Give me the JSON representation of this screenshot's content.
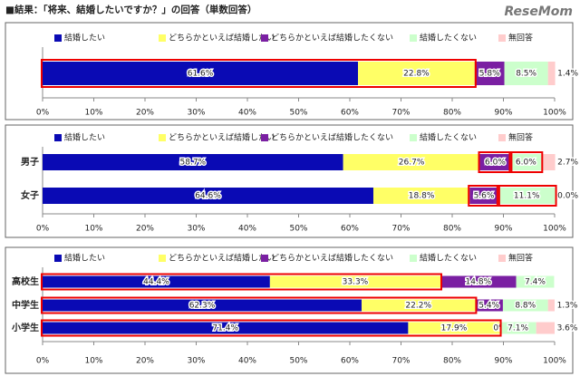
{
  "title": "■結果：「将来、結婚したいですか？」の回答（単数回答）",
  "logo": "ReseMom",
  "chart_data": [
    {
      "type": "bar",
      "orientation": "horizontal",
      "stacked": true,
      "categories": [
        null
      ],
      "series": [
        {
          "name": "結婚したい",
          "color": "#0a0ab4",
          "values": [
            61.6
          ],
          "value_labels": [
            "61.6%"
          ]
        },
        {
          "name": "どちらかといえば結婚したい",
          "color": "#ffff66",
          "values": [
            22.8
          ],
          "value_labels": [
            "22.8%"
          ]
        },
        {
          "name": "どちらかといえば結婚したくない",
          "color": "#7a1fa2",
          "values": [
            5.8
          ],
          "value_labels": [
            "5.8%"
          ]
        },
        {
          "name": "結婚したくない",
          "color": "#ccffcc",
          "values": [
            8.5
          ],
          "value_labels": [
            "8.5%"
          ]
        },
        {
          "name": "無回答",
          "color": "#ffcccc",
          "values": [
            1.4
          ],
          "value_labels": [
            "1.4%"
          ]
        }
      ],
      "xlim": [
        0,
        100
      ],
      "xticks": [
        {
          "value": 0,
          "label": "0%"
        },
        {
          "value": 10,
          "label": "10%"
        },
        {
          "value": 20,
          "label": "20%"
        },
        {
          "value": 30,
          "label": "30%"
        },
        {
          "value": 40,
          "label": "40%"
        },
        {
          "value": 50,
          "label": "50%"
        },
        {
          "value": 60,
          "label": "60%"
        },
        {
          "value": 70,
          "label": "70%"
        },
        {
          "value": 80,
          "label": "80%"
        },
        {
          "value": 90,
          "label": "90%"
        },
        {
          "value": 100,
          "label": "100%"
        }
      ]
    },
    {
      "type": "bar",
      "orientation": "horizontal",
      "stacked": true,
      "categories": [
        "男子",
        "女子"
      ],
      "series": [
        {
          "name": "結婚したい",
          "color": "#0a0ab4",
          "values": [
            58.7,
            64.6
          ],
          "value_labels": [
            "58.7%",
            "64.6%"
          ]
        },
        {
          "name": "どちらかといえば結婚したい",
          "color": "#ffff66",
          "values": [
            26.7,
            18.8
          ],
          "value_labels": [
            "26.7%",
            "18.8%"
          ]
        },
        {
          "name": "どちらかといえば結婚したくない",
          "color": "#7a1fa2",
          "values": [
            6.0,
            5.6
          ],
          "value_labels": [
            "6.0%",
            "5.6%"
          ]
        },
        {
          "name": "結婚したくない",
          "color": "#ccffcc",
          "values": [
            6.0,
            11.1
          ],
          "value_labels": [
            "6.0%",
            "11.1%"
          ]
        },
        {
          "name": "無回答",
          "color": "#ffcccc",
          "values": [
            2.7,
            0.0
          ],
          "value_labels": [
            "2.7%",
            "0.0%"
          ]
        }
      ],
      "xlim": [
        0,
        100
      ],
      "xticks": [
        {
          "value": 0,
          "label": "0%"
        },
        {
          "value": 10,
          "label": "10%"
        },
        {
          "value": 20,
          "label": "20%"
        },
        {
          "value": 30,
          "label": "30%"
        },
        {
          "value": 40,
          "label": "40%"
        },
        {
          "value": 50,
          "label": "50%"
        },
        {
          "value": 60,
          "label": "60%"
        },
        {
          "value": 70,
          "label": "70%"
        },
        {
          "value": 80,
          "label": "80%"
        },
        {
          "value": 90,
          "label": "90%"
        },
        {
          "value": 100,
          "label": "100%"
        }
      ]
    },
    {
      "type": "bar",
      "orientation": "horizontal",
      "stacked": true,
      "categories": [
        "高校生",
        "中学生",
        "小学生"
      ],
      "series": [
        {
          "name": "結婚したい",
          "color": "#0a0ab4",
          "values": [
            44.4,
            62.3,
            71.4
          ],
          "value_labels": [
            "44.4%",
            "62.3%",
            "71.4%"
          ]
        },
        {
          "name": "どちらかといえば結婚したい",
          "color": "#ffff66",
          "values": [
            33.3,
            22.2,
            17.9
          ],
          "value_labels": [
            "33.3%",
            "22.2%",
            "17.9%"
          ]
        },
        {
          "name": "どちらかといえば結婚したくない",
          "color": "#7a1fa2",
          "values": [
            14.8,
            5.4,
            0
          ],
          "value_labels": [
            "14.8%",
            "5.4%",
            "0%"
          ]
        },
        {
          "name": "結婚したくない",
          "color": "#ccffcc",
          "values": [
            7.4,
            8.8,
            7.1
          ],
          "value_labels": [
            "7.4%",
            "8.8%",
            "7.1%"
          ]
        },
        {
          "name": "無回答",
          "color": "#ffcccc",
          "values": [
            null,
            1.3,
            3.6
          ],
          "value_labels": [
            null,
            "1.3%",
            "3.6%"
          ]
        }
      ],
      "xlim": [
        0,
        100
      ],
      "xticks": [
        {
          "value": 0,
          "label": "0%"
        },
        {
          "value": 10,
          "label": "10%"
        },
        {
          "value": 20,
          "label": "20%"
        },
        {
          "value": 30,
          "label": "30%"
        },
        {
          "value": 40,
          "label": "40%"
        },
        {
          "value": 50,
          "label": "50%"
        },
        {
          "value": 60,
          "label": "60%"
        },
        {
          "value": 70,
          "label": "70%"
        },
        {
          "value": 80,
          "label": "80%"
        },
        {
          "value": 90,
          "label": "90%"
        },
        {
          "value": 100,
          "label": "100%"
        }
      ]
    }
  ]
}
